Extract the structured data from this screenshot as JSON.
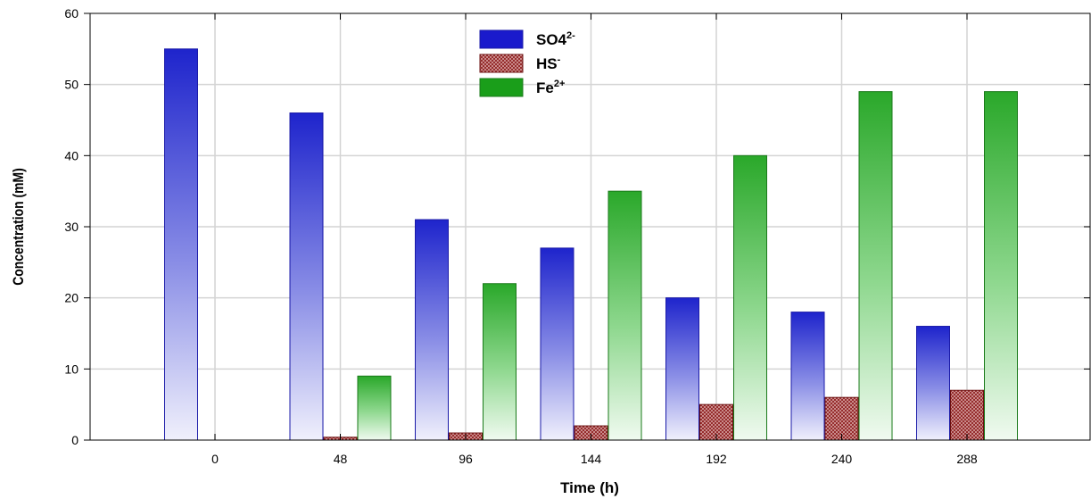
{
  "chart_data": {
    "type": "bar",
    "xlabel": "Time (h)",
    "ylabel": "Concentration (mM)",
    "ylim": [
      0,
      60
    ],
    "yticks": [
      0,
      10,
      20,
      30,
      40,
      50,
      60
    ],
    "categories": [
      "0",
      "48",
      "96",
      "144",
      "192",
      "240",
      "288"
    ],
    "grid": true,
    "legend_position": "top-center",
    "series": [
      {
        "name": "SO4",
        "name_sup": "2-",
        "color": "#1a1acc",
        "pattern": "gradient",
        "values": [
          55,
          46,
          31,
          27,
          20,
          18,
          16
        ]
      },
      {
        "name": "HS",
        "name_sup": "-",
        "color": "#8b1a1a",
        "pattern": "crosshatch",
        "values": [
          0,
          0.4,
          1,
          2,
          5,
          6,
          7
        ]
      },
      {
        "name": "Fe",
        "name_sup": "2+",
        "color": "#1a9e1a",
        "pattern": "gradient",
        "values": [
          0,
          9,
          22,
          35,
          40,
          49,
          49
        ]
      }
    ]
  }
}
